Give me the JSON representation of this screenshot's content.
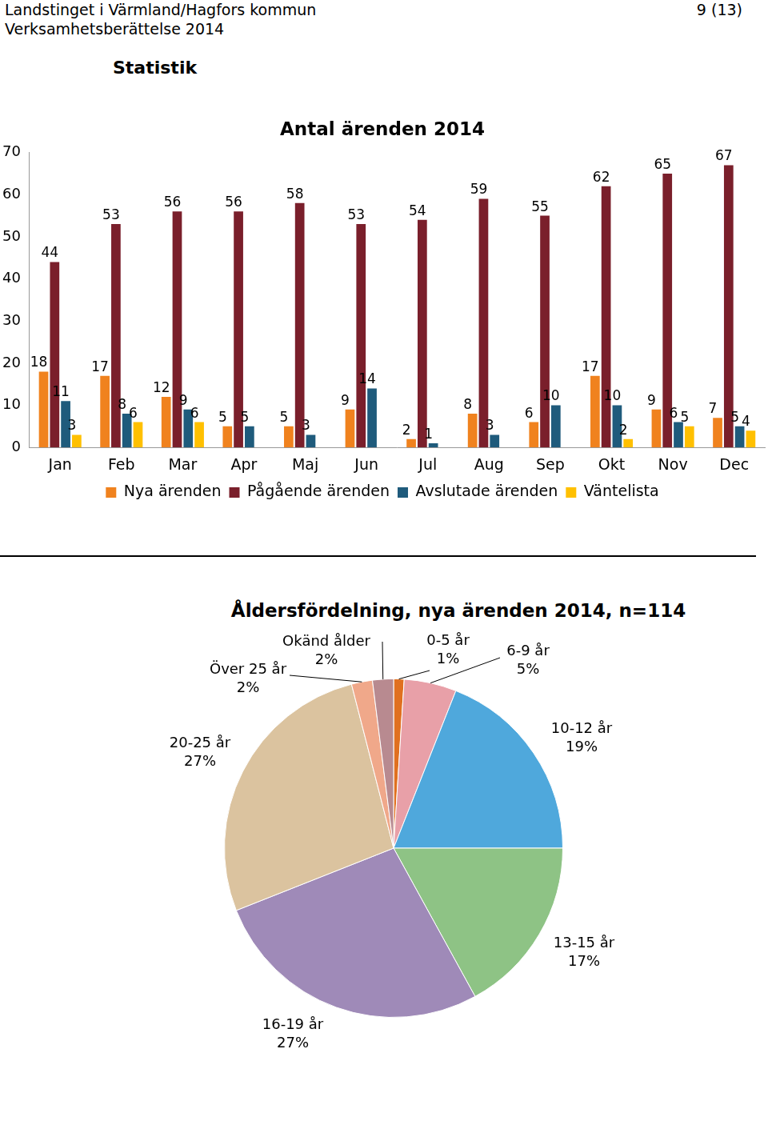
{
  "header": {
    "organization": "Landstinget i Värmland/Hagfors kommun",
    "report": "Verksamhetsberättelse 2014",
    "page": "9 (13)"
  },
  "heading": "Statistik",
  "chart_data": [
    {
      "type": "bar",
      "title": "Antal ärenden 2014",
      "categories": [
        "Jan",
        "Feb",
        "Mar",
        "Apr",
        "Maj",
        "Jun",
        "Jul",
        "Aug",
        "Sep",
        "Okt",
        "Nov",
        "Dec"
      ],
      "series": [
        {
          "name": "Nya ärenden",
          "color": "#f0821e",
          "values": [
            18,
            17,
            12,
            5,
            5,
            9,
            2,
            8,
            6,
            17,
            9,
            7
          ]
        },
        {
          "name": "Pågående ärenden",
          "color": "#7a1f2b",
          "values": [
            44,
            53,
            56,
            56,
            58,
            53,
            54,
            59,
            55,
            62,
            65,
            67
          ]
        },
        {
          "name": "Avslutade ärenden",
          "color": "#1f5b7c",
          "values": [
            11,
            8,
            9,
            5,
            3,
            14,
            1,
            3,
            10,
            10,
            6,
            5
          ]
        },
        {
          "name": "Väntelista",
          "color": "#ffc000",
          "values": [
            3,
            6,
            6,
            null,
            null,
            null,
            null,
            null,
            null,
            2,
            5,
            4
          ]
        }
      ],
      "ylim": [
        0,
        70
      ],
      "yticks": [
        0,
        10,
        20,
        30,
        40,
        50,
        60,
        70
      ],
      "grid": false,
      "legend": "bottom",
      "data_labels": true
    },
    {
      "type": "pie",
      "title": "Åldersfördelning, nya ärenden 2014, n=114",
      "categories": [
        "0-5 år",
        "6-9 år",
        "10-12 år",
        "13-15 år",
        "16-19 år",
        "20-25 år",
        "Över 25 år",
        "Okänd ålder"
      ],
      "values": [
        1,
        5,
        19,
        17,
        27,
        27,
        2,
        2
      ],
      "value_labels": [
        "1%",
        "5%",
        "19%",
        "17%",
        "27%",
        "27%",
        "2%",
        "2%"
      ],
      "colors": [
        "#e07020",
        "#e8a0a8",
        "#4fa8dc",
        "#8ec385",
        "#9f8ab8",
        "#dbc39f",
        "#f0a88a",
        "#b88a90"
      ],
      "data_labels": true
    }
  ]
}
